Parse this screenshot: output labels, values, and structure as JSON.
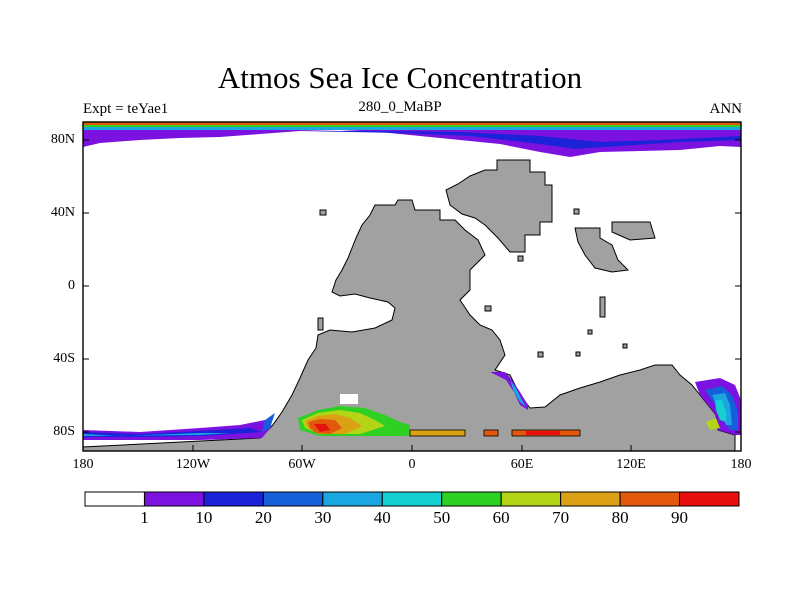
{
  "title": "Atmos Sea Ice Concentration",
  "left_label": "Expt = teYae1",
  "center_label": "280_0_MaBP",
  "right_label": "ANN",
  "x_ticks": [
    "180",
    "120W",
    "60W",
    "0",
    "60E",
    "120E",
    "180"
  ],
  "y_ticks": [
    "80N",
    "40N",
    "0",
    "40S",
    "80S"
  ],
  "colorbar": {
    "labels": [
      "1",
      "10",
      "20",
      "30",
      "40",
      "50",
      "60",
      "70",
      "80",
      "90"
    ],
    "colors": [
      "#ffffff",
      "#7b12e0",
      "#1b22d8",
      "#1560da",
      "#1aa6e0",
      "#16cfd0",
      "#2fd024",
      "#b4d516",
      "#dba014",
      "#e2580c",
      "#e8100e"
    ]
  },
  "land_color": "#a1a1a1",
  "map_features": [
    "sea-ice-north-polar",
    "sea-ice-south-polar",
    "pangaea-landmass"
  ]
}
